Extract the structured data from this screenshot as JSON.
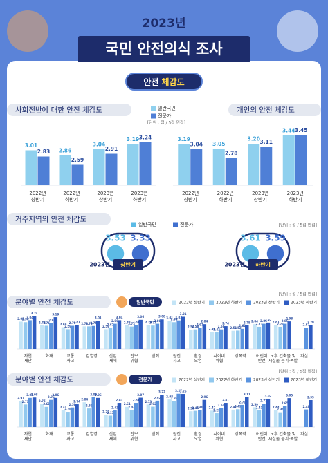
{
  "header": {
    "year": "2023년",
    "title": "국민 안전의식 조사",
    "tag": [
      "안전",
      "체감도"
    ]
  },
  "chart_data": [
    {
      "type": "bar",
      "title": "사회전반에 대한 안전 체감도",
      "unit": "[단위 : 점 / 5점 만점]",
      "categories": [
        "2022년\n상반기",
        "2022년\n하반기",
        "2023년\n상반기",
        "2023년\n하반기"
      ],
      "series": [
        {
          "name": "일반국민",
          "color": "#8fd0ee",
          "values": [
            3.01,
            2.86,
            3.04,
            3.19
          ]
        },
        {
          "name": "전문가",
          "color": "#4f7fd6",
          "values": [
            2.83,
            2.59,
            2.91,
            3.24
          ]
        }
      ],
      "ylim": [
        2,
        3.6
      ]
    },
    {
      "type": "bar",
      "title": "개인의  안전 체감도",
      "categories": [
        "2022년\n상반기",
        "2022년\n하반기",
        "2023년\n상반기",
        "2023년\n하반기"
      ],
      "series": [
        {
          "color": "#8fd0ee",
          "values": [
            3.19,
            3.05,
            3.2,
            3.44
          ],
          "value_labels": [
            "3.19",
            "3.05",
            "3.20",
            "3.44"
          ]
        },
        {
          "color": "#4f7fd6",
          "values": [
            3.04,
            2.78,
            3.11,
            3.45
          ]
        }
      ],
      "ylim": [
        2,
        3.6
      ]
    },
    {
      "type": "dot",
      "title": "거주지역의 안전 체감도",
      "unit": "[단위 : 점 / 5점 만점]",
      "categories": [
        [
          "2023년",
          "상반기"
        ],
        [
          "2023년",
          "하반기"
        ]
      ],
      "series": [
        {
          "name": "일반국민",
          "color": "#5bbbe6",
          "values": [
            3.53,
            3.61
          ]
        },
        {
          "name": "전문가",
          "color": "#3f6fcf",
          "values": [
            3.33,
            3.59
          ]
        }
      ]
    },
    {
      "type": "bar",
      "title": "분야별 안전 체감도",
      "badge": "일반국민",
      "unit": "[단위 : 점 / 5점 만점]",
      "categories": [
        "자연\n재난",
        "화재",
        "교통\n사고",
        "감염병",
        "산업\n재해",
        "안보\n위협",
        "범죄",
        "원전\n사고",
        "환경\n오염",
        "사이버\n위협",
        "성폭력",
        "어린이\n안전",
        "노후 건축물 및\n시설물 붕괴·폭발",
        "자살"
      ],
      "series": [
        {
          "name": "2022년 상반기",
          "color": "#c3e4f6",
          "values": [
            2.97,
            2.78,
            2.69,
            2.73,
            2.59,
            2.78,
            2.79,
            3.01,
            2.56,
            2.46,
            2.51,
            2.84,
            2.81,
            null
          ]
        },
        {
          "name": "2022년 하반기",
          "color": "#91c8ee",
          "values": [
            2.94,
            2.76,
            2.59,
            2.73,
            2.67,
            2.72,
            2.77,
            2.94,
            2.58,
            2.43,
            2.52,
            2.71,
            2.71,
            null
          ]
        },
        {
          "name": "2023년 상반기",
          "color": "#5a93df",
          "values": [
            3.04,
            2.9,
            2.76,
            2.75,
            2.86,
            2.81,
            2.86,
            3.03,
            2.67,
            2.58,
            2.61,
            2.86,
            2.86,
            2.67
          ]
        },
        {
          "name": "2023년 하반기",
          "color": "#2f5cc2",
          "values": [
            3.24,
            3.19,
            2.81,
            3.01,
            3.04,
            3.06,
            3.08,
            3.21,
            2.84,
            2.74,
            2.78,
            2.92,
            2.98,
            2.79
          ]
        }
      ],
      "ylim": [
        1.6,
        3.4
      ]
    },
    {
      "type": "bar",
      "title": "분야별 안전 체감도",
      "badge": "전문가",
      "unit": "[단위 : 점 / 5점 만점]",
      "categories": [
        "자연\n재난",
        "화재",
        "교통\n사고",
        "감염병",
        "산업\n재해",
        "안보\n위협",
        "범죄",
        "원전\n사고",
        "환경\n오염",
        "사이버\n위협",
        "성폭력",
        "어린이\n안전",
        "노후 건축물 및\n시설물 붕괴·폭발",
        "자살"
      ],
      "series": [
        {
          "name": "2022년 상반기",
          "color": "#c3e4f6",
          "values": [
            2.91,
            2.75,
            2.44,
            2.84,
            2.22,
            2.61,
            2.73,
            2.98,
            2.39,
            2.42,
            2.47,
            2.59,
            2.44,
            null
          ]
        },
        {
          "name": "2022년 하반기",
          "color": "#91c8ee",
          "values": [
            2.73,
            2.61,
            2.36,
            2.53,
            2.17,
            2.44,
            2.62,
            2.89,
            2.41,
            2.29,
            2.49,
            2.43,
            2.34,
            null
          ]
        },
        {
          "name": "2023년 상반기",
          "color": "#5a93df",
          "values": [
            3.06,
            2.96,
            2.58,
            3.09,
            2.43,
            2.81,
            2.92,
            3.27,
            2.46,
            2.54,
            2.71,
            2.77,
            2.65,
            2.48
          ]
        },
        {
          "name": "2023년 하반기",
          "color": "#2f5cc2",
          "values": [
            3.08,
            3.06,
            2.74,
            3.06,
            2.81,
            3.07,
            3.22,
            3.26,
            2.96,
            2.81,
            3.11,
            3.02,
            3.05,
            2.95
          ]
        }
      ],
      "ylim": [
        1.6,
        3.4
      ]
    }
  ]
}
